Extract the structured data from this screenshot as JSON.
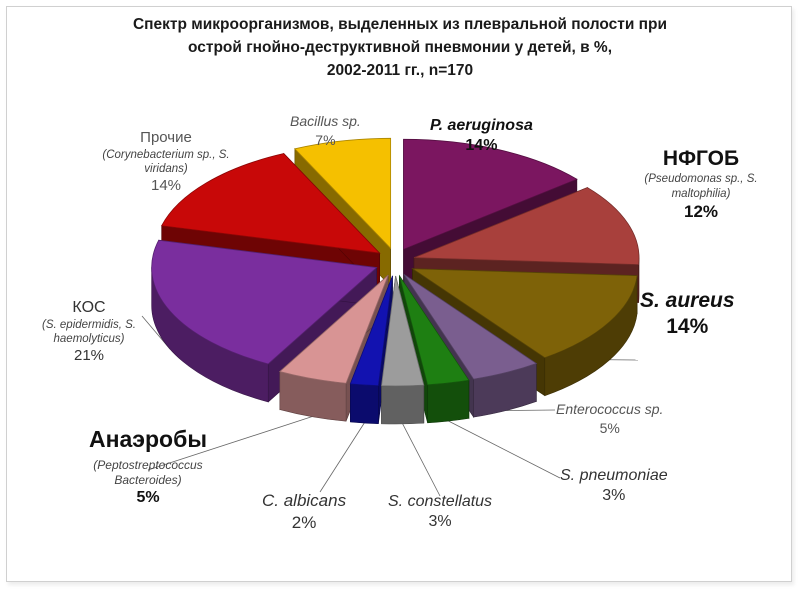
{
  "chart_data": {
    "type": "pie",
    "title": [
      "Спектр микроорганизмов, выделенных из плевральной полости при",
      "острой гнойно-деструктивной пневмонии у детей, в %,",
      "2002-2011 гг., n=170"
    ],
    "slices": [
      {
        "name": "P. aeruginosa",
        "sub": "",
        "value": 14,
        "label": "14%",
        "color": "#7B1660"
      },
      {
        "name": "НФГОБ",
        "sub": "(Pseudomonas sp., S. maltophilia)",
        "value": 12,
        "label": "12%",
        "color": "#A8403C"
      },
      {
        "name": "S. aureus",
        "sub": "",
        "value": 14,
        "label": "14%",
        "color": "#7E6208"
      },
      {
        "name": "Enterococcus sp.",
        "sub": "",
        "value": 5,
        "label": "5%",
        "color": "#7A5E8F"
      },
      {
        "name": "S. pneumoniae",
        "sub": "",
        "value": 3,
        "label": "3%",
        "color": "#1E7F12"
      },
      {
        "name": "S. constellatus",
        "sub": "",
        "value": 3,
        "label": "3%",
        "color": "#9C9C9C"
      },
      {
        "name": "C. albicans",
        "sub": "",
        "value": 2,
        "label": "2%",
        "color": "#1212B0"
      },
      {
        "name": "Анаэробы",
        "sub": "(Peptostreptococcus Bacteroides)",
        "value": 5,
        "label": "5%",
        "color": "#D89494"
      },
      {
        "name": "КОС",
        "sub": "(S. epidermidis, S. haemolyticus)",
        "value": 21,
        "label": "21%",
        "color": "#7A2E9E"
      },
      {
        "name": "Прочие",
        "sub": "(Corynebacterium sp., S. viridans)",
        "value": 14,
        "label": "14%",
        "color": "#C80808"
      },
      {
        "name": "Bacillus sp.",
        "sub": "",
        "value": 7,
        "label": "7%",
        "color": "#F5C000"
      }
    ],
    "legend": "none"
  }
}
